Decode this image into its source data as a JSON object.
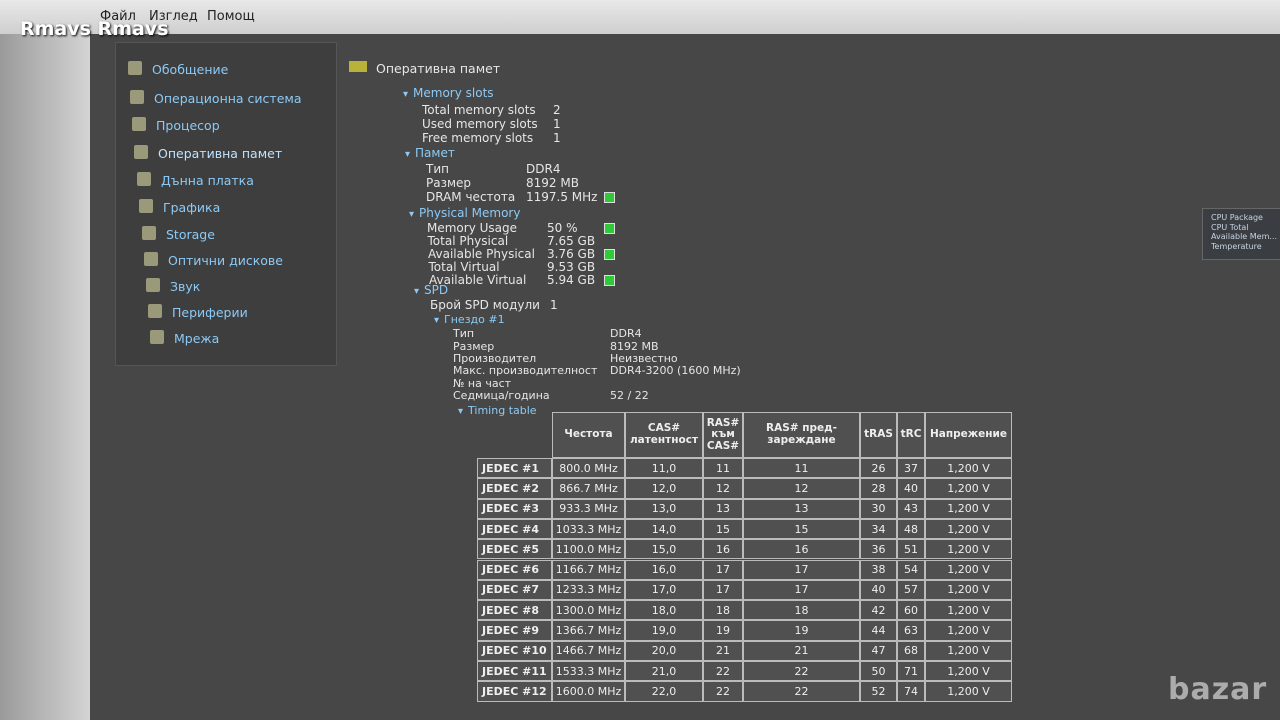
{
  "watermark": "Rmavs Rmavs",
  "menu": [
    "Файл",
    "Изглед",
    "Помощ"
  ],
  "sidebar": [
    "Обобщение",
    "Операционна система",
    "Процесор",
    "Оперативна памет",
    "Дънна платка",
    "Графика",
    "Storage",
    "Оптични дискове",
    "Звук",
    "Периферии",
    "Мрежа"
  ],
  "title": "Оперативна памет",
  "sections": [
    {
      "title": "Memory slots",
      "rows": [
        {
          "label": "Total memory slots",
          "value": "2"
        },
        {
          "label": "Used memory slots",
          "value": "1"
        },
        {
          "label": "Free memory slots",
          "value": "1"
        }
      ]
    },
    {
      "title": "Памет",
      "rows": [
        {
          "label": "Тип",
          "value": "DDR4"
        },
        {
          "label": "Размер",
          "value": "8192 MB"
        },
        {
          "label": "DRAM честота",
          "value": "1197.5 MHz",
          "indicator": true
        }
      ]
    },
    {
      "title": "Physical Memory",
      "rows": [
        {
          "label": "Memory Usage",
          "value": "50 %",
          "indicator": true
        },
        {
          "label": "Total Physical",
          "value": "7.65 GB"
        },
        {
          "label": "Available Physical",
          "value": "3.76 GB",
          "indicator": true
        },
        {
          "label": "Total Virtual",
          "value": "9.53 GB"
        },
        {
          "label": "Available Virtual",
          "value": "5.94 GB",
          "indicator": true
        }
      ]
    }
  ],
  "spd": {
    "title": "SPD",
    "count_label": "Брой SPD модули",
    "count": "1",
    "slot_title": "Гнездо #1",
    "rows": [
      {
        "label": "Тип",
        "value": "DDR4"
      },
      {
        "label": "Размер",
        "value": "8192 MB"
      },
      {
        "label": "Производител",
        "value": "Неизвестно"
      },
      {
        "label": "Макс. производителност",
        "value": "DDR4-3200 (1600 MHz)"
      },
      {
        "label": "№ на част"
      },
      {
        "label": "Седмица/година",
        "value": "52 / 22"
      }
    ],
    "timing_title": "Timing table"
  },
  "timing": {
    "headers": [
      "Честота",
      "CAS# латентност",
      "RAS# към CAS#",
      "RAS# пред-зареждане",
      "tRAS",
      "tRC",
      "Напрежение"
    ],
    "rows": [
      [
        "JEDEC #1",
        "800.0 MHz",
        "11,0",
        "11",
        "11",
        "26",
        "37",
        "1,200 V"
      ],
      [
        "JEDEC #2",
        "866.7 MHz",
        "12,0",
        "12",
        "12",
        "28",
        "40",
        "1,200 V"
      ],
      [
        "JEDEC #3",
        "933.3 MHz",
        "13,0",
        "13",
        "13",
        "30",
        "43",
        "1,200 V"
      ],
      [
        "JEDEC #4",
        "1033.3 MHz",
        "14,0",
        "15",
        "15",
        "34",
        "48",
        "1,200 V"
      ],
      [
        "JEDEC #5",
        "1100.0 MHz",
        "15,0",
        "16",
        "16",
        "36",
        "51",
        "1,200 V"
      ],
      [
        "JEDEC #6",
        "1166.7 MHz",
        "16,0",
        "17",
        "17",
        "38",
        "54",
        "1,200 V"
      ],
      [
        "JEDEC #7",
        "1233.3 MHz",
        "17,0",
        "17",
        "17",
        "40",
        "57",
        "1,200 V"
      ],
      [
        "JEDEC #8",
        "1300.0 MHz",
        "18,0",
        "18",
        "18",
        "42",
        "60",
        "1,200 V"
      ],
      [
        "JEDEC #9",
        "1366.7 MHz",
        "19,0",
        "19",
        "19",
        "44",
        "63",
        "1,200 V"
      ],
      [
        "JEDEC #10",
        "1466.7 MHz",
        "20,0",
        "21",
        "21",
        "47",
        "68",
        "1,200 V"
      ],
      [
        "JEDEC #11",
        "1533.3 MHz",
        "21,0",
        "22",
        "22",
        "50",
        "71",
        "1,200 V"
      ],
      [
        "JEDEC #12",
        "1600.0 MHz",
        "22,0",
        "22",
        "22",
        "52",
        "74",
        "1,200 V"
      ]
    ]
  },
  "widget": [
    "CPU Package",
    "CPU Total",
    "Available Mem...",
    "Temperature"
  ],
  "logo": "bazar"
}
